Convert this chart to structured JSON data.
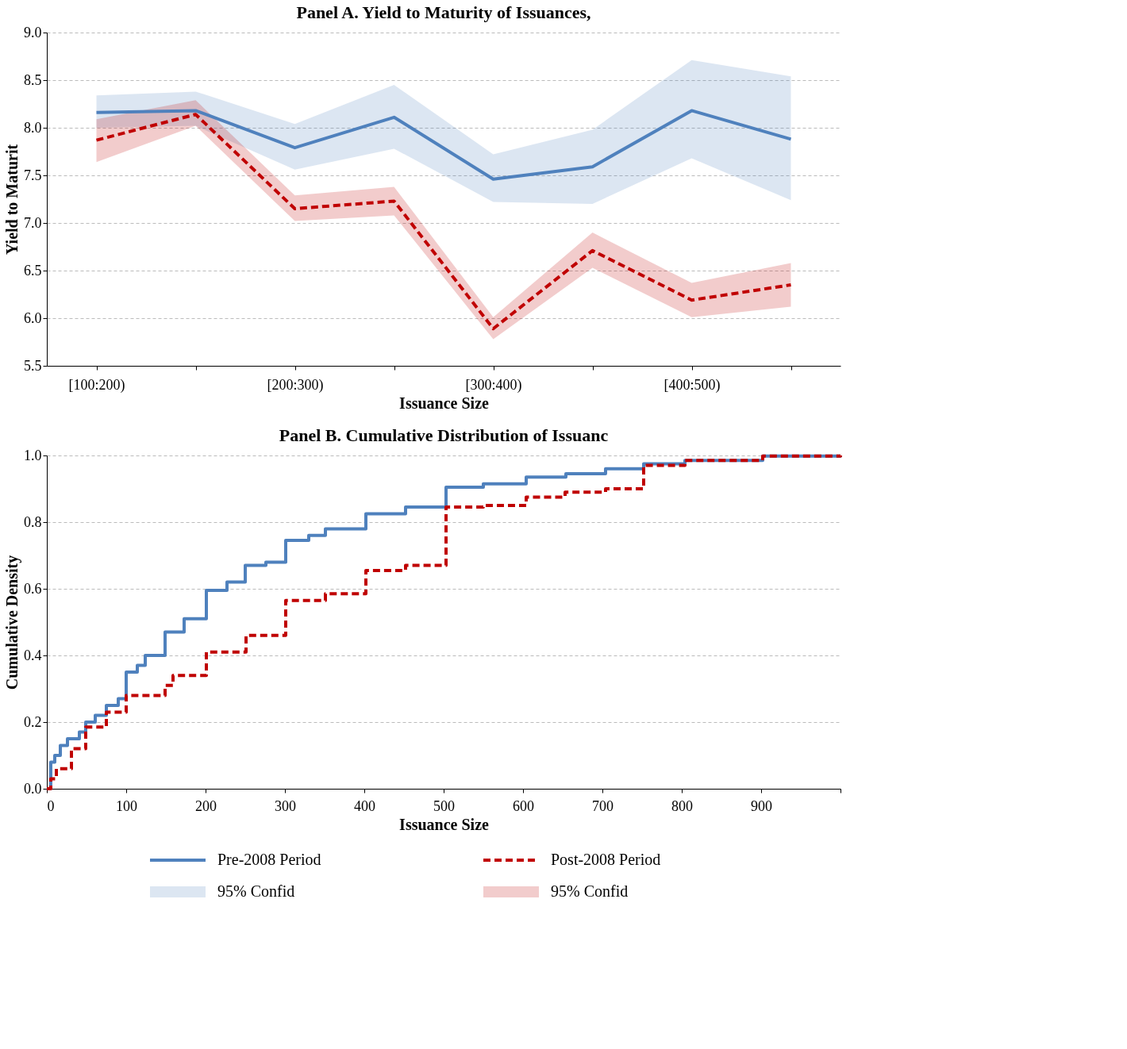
{
  "chart_data": [
    {
      "type": "line",
      "title": "Panel A. Yield to Maturity of Issuances,",
      "xlabel": "Issuance Size",
      "ylabel": "Yield to Maturit",
      "categories": [
        "[100:200)",
        null,
        "[200:300)",
        null,
        "[300:400)",
        null,
        "[400:500)",
        null
      ],
      "ylim": [
        5.5,
        9.0
      ],
      "yticks": [
        5.5,
        {
          "value": 6,
          "label": "6.0"
        },
        6.5,
        {
          "value": 7,
          "label": "7.0"
        },
        7.5,
        {
          "value": 8,
          "label": "8.0"
        },
        8.5,
        {
          "value": 9,
          "label": "9.0"
        }
      ],
      "grid": "y",
      "legend": "bottom",
      "annotations": [
        "95% Confid",
        "95% Confid"
      ],
      "series": [
        {
          "name": "Pre-2008 Period",
          "type": "line",
          "color": "#4f81bd",
          "line_style": "solid",
          "values": [
            8.16,
            8.18,
            7.79,
            8.11,
            7.46,
            7.59,
            8.18,
            7.88
          ],
          "lower": [
            8.0,
            8.02,
            7.56,
            7.78,
            7.22,
            7.2,
            7.68,
            7.24
          ],
          "upper": [
            8.34,
            8.38,
            8.04,
            8.45,
            7.72,
            7.98,
            8.71,
            8.54
          ]
        },
        {
          "name": "Post-2008 Period",
          "type": "line",
          "color": "#c00000",
          "line_style": "dashed",
          "values": [
            7.87,
            8.14,
            7.15,
            7.23,
            5.89,
            6.71,
            6.19,
            6.35
          ],
          "lower": [
            7.64,
            8.02,
            7.02,
            7.08,
            5.78,
            6.53,
            6.01,
            6.12
          ],
          "upper": [
            8.09,
            8.29,
            7.29,
            7.38,
            6.01,
            6.9,
            6.37,
            6.58
          ]
        }
      ]
    },
    {
      "type": "step",
      "title": "Panel B. Cumulative Distribution of Issuanc",
      "xlabel": "Issuance Size",
      "ylabel": "Cumulative Density",
      "xlim": [
        0,
        1000
      ],
      "xticks": [
        0,
        100,
        200,
        300,
        400,
        500,
        600,
        700,
        800,
        900,
        {
          "value": 1000,
          "label": null
        }
      ],
      "ylim": [
        0.0,
        1.0
      ],
      "yticks": [
        {
          "value": 0,
          "label": "0.0"
        },
        0.2,
        0.4,
        0.6,
        0.8,
        {
          "value": 1,
          "label": "1.0"
        }
      ],
      "grid": "y",
      "series": [
        {
          "color": "#4f81bd",
          "line_style": "solid",
          "x": [
            0,
            5,
            10,
            17,
            26,
            41,
            49,
            61,
            75,
            90,
            100,
            114,
            124,
            149,
            173,
            201,
            227,
            250,
            276,
            301,
            330,
            351,
            402,
            452,
            503,
            550,
            604,
            654,
            704,
            752,
            804,
            902,
            1000
          ],
          "values": [
            0.0,
            0.08,
            0.1,
            0.13,
            0.15,
            0.17,
            0.2,
            0.22,
            0.25,
            0.27,
            0.35,
            0.37,
            0.4,
            0.47,
            0.51,
            0.595,
            0.62,
            0.67,
            0.68,
            0.745,
            0.76,
            0.78,
            0.825,
            0.845,
            0.905,
            0.915,
            0.935,
            0.945,
            0.96,
            0.975,
            0.985,
            0.998,
            1.0
          ]
        },
        {
          "color": "#c00000",
          "line_style": "dashed",
          "x": [
            0,
            5,
            12,
            31,
            49,
            75,
            100,
            149,
            159,
            201,
            251,
            301,
            351,
            402,
            452,
            503,
            550,
            604,
            653,
            704,
            752,
            804,
            902,
            1000
          ],
          "values": [
            0.0,
            0.03,
            0.06,
            0.12,
            0.185,
            0.23,
            0.28,
            0.31,
            0.34,
            0.41,
            0.46,
            0.565,
            0.585,
            0.655,
            0.67,
            0.845,
            0.85,
            0.875,
            0.89,
            0.9,
            0.97,
            0.985,
            0.998,
            1.0
          ]
        }
      ]
    }
  ]
}
